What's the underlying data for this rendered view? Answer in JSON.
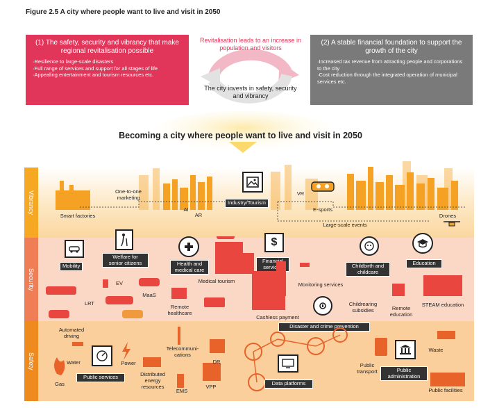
{
  "figure_title": "Figure 2.5 A city where people want to live and visit in 2050",
  "panel_left": {
    "heading": "(1) The safety, security and vibrancy that make regional revitalisation possible",
    "items": [
      "Resilience to large-scale disasters",
      "Full range of services and support for all stages of life",
      "Appealing entertainment and tourism resources etc."
    ]
  },
  "panel_right": {
    "heading": "(2) A stable financial foundation to support the growth of the city",
    "items": [
      "Increased tax revenue from attracting people and corporations to the city",
      "Cost reduction through the integrated operation of municipal services etc."
    ]
  },
  "cycle": {
    "top_text": "Revitalisation leads to an increase in population and visitors",
    "middle_text": "The city invests in safety, security and vibrancy"
  },
  "main_heading": "Becoming a city where people want to live and visit in 2050",
  "bands": {
    "vibrancy": "Vibrancy",
    "security": "Security",
    "safety": "Safety"
  },
  "vibrancy_labels": {
    "smart_factories": "Smart factories",
    "one_to_one": "One-to-one marketing",
    "ai": "AI",
    "ar": "AR",
    "industry_tourism": "Industry/Tourism",
    "vr": "VR",
    "esports": "E-sports",
    "large_scale_events": "Large-scale events",
    "drones": "Drones"
  },
  "security_labels": {
    "mobility": "Mobility",
    "welfare": "Welfare for senior citizens",
    "health": "Health and medical care",
    "medical_tourism": "Medical tourism",
    "financial": "Financial services",
    "monitoring": "Monitoring services",
    "childbirth": "Childbirth and childcare",
    "education": "Education",
    "ev": "EV",
    "lrt": "LRT",
    "maas": "MaaS",
    "remote_healthcare": "Remote healthcare",
    "cashless": "Cashless payment",
    "childrearing": "Childrearing subsidies",
    "remote_education": "Remote education",
    "steam": "STEAM education",
    "automated_driving": "Automated driving",
    "disaster": "Disaster and crime prevention"
  },
  "safety_labels": {
    "water": "Water",
    "gas": "Gas",
    "power": "Power",
    "public_services": "Public services",
    "telecom": "Telecommuni-cations",
    "distributed": "Distributed energy resources",
    "ems": "EMS",
    "vpp": "VPP",
    "dr": "DR",
    "data_platforms": "Data platforms",
    "public_transport": "Public transport",
    "public_admin": "Public administration",
    "waste": "Waste",
    "public_facilities": "Public facilities"
  },
  "colors": {
    "red_panel": "#e2355a",
    "grey_panel": "#7a7a7a",
    "vibrancy_tab": "#f7a823",
    "security_tab": "#ef7e57",
    "safety_tab": "#ef8a1e",
    "tag_background": "#333333"
  },
  "icons": {
    "industry": "picture-icon",
    "mobility": "car-tablet-icon",
    "welfare": "walker-icon",
    "health": "medical-cross-icon",
    "financial": "dollar-icon",
    "childbirth": "baby-icon",
    "education": "graduation-cap-icon",
    "disaster": "alarm-icon",
    "public_services": "meter-icon",
    "data_platforms": "monitor-icon",
    "public_admin": "government-building-icon",
    "ev": "ev-icon",
    "drone": "drone-icon",
    "vr_headset": "vr-headset-icon",
    "lrt_train": "train-icon",
    "helicopter": "helicopter-icon",
    "ambulance": "ambulance-icon",
    "gas_flame": "flame-icon",
    "water_tap": "tap-icon",
    "power_bolt": "lightning-icon",
    "telecom_tower": "antenna-icon"
  }
}
